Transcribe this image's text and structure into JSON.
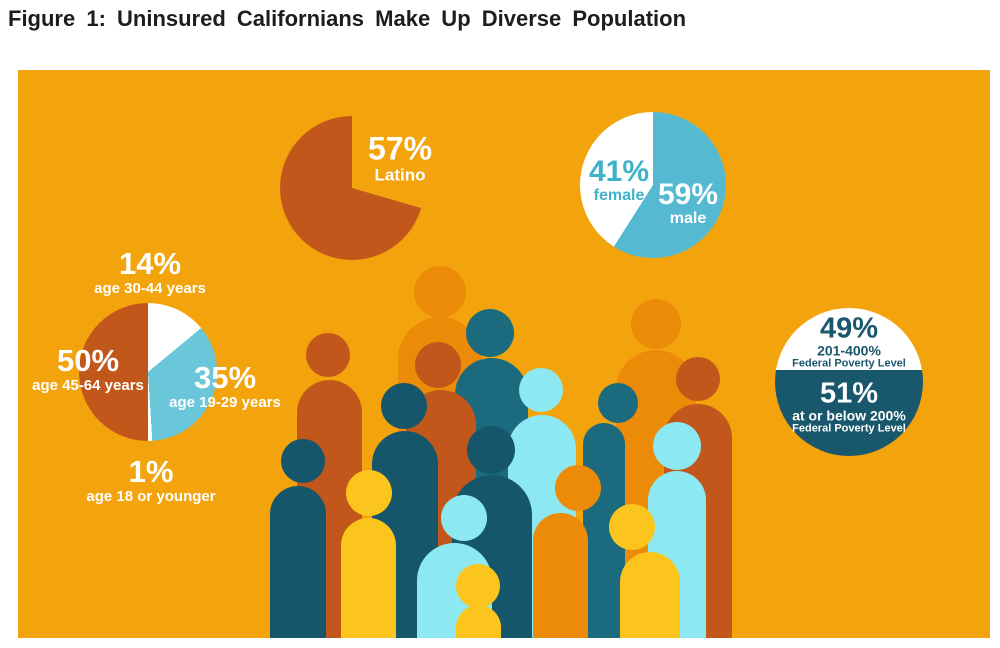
{
  "title": "Figure 1: Uninsured Californians Make Up Diverse Population",
  "colors": {
    "panel_background": "#f3a40c",
    "title_text": "#1d1d1d",
    "rust": "#c2571b",
    "orange": "#ec8b07",
    "dark_teal": "#16566b",
    "medium_teal": "#1c6a7e",
    "light_cyan": "#8ce9f1",
    "yellow": "#fcc51e",
    "gender_teal": "#55bad1",
    "age_teal": "#6ac6d9",
    "fpl_dark_teal": "#19576c",
    "label_white": "#ffffff"
  },
  "chart_data": [
    {
      "id": "latino",
      "type": "pie",
      "title": "Ethnicity",
      "slices": [
        {
          "label": "Latino",
          "value": 57
        }
      ],
      "paint": {
        "kind": "conic",
        "stops": [
          {
            "color": "rgba(0,0,0,0)",
            "to": 29.5
          },
          {
            "color": "#c2571b",
            "to": 100
          }
        ]
      },
      "layout_hint": "partial pie (open wedge facing upper-right), white labels inside the opening"
    },
    {
      "id": "gender",
      "type": "pie",
      "title": "Gender",
      "slices": [
        {
          "label": "male",
          "value": 59
        },
        {
          "label": "female",
          "value": 41
        }
      ],
      "paint": {
        "kind": "conic",
        "stops": [
          {
            "color": "#55bad1",
            "to": 59
          },
          {
            "color": "#ffffff",
            "to": 100
          }
        ]
      },
      "layout_hint": "teal male slice starts at 12 o'clock clockwise; white female slice upper-left"
    },
    {
      "id": "age",
      "type": "pie",
      "title": "Age",
      "slices": [
        {
          "label": "age 30-44 years",
          "value": 14
        },
        {
          "label": "age 19-29 years",
          "value": 35
        },
        {
          "label": "age 18 or younger",
          "value": 1
        },
        {
          "label": "age 45-64 years",
          "value": 50
        }
      ],
      "paint": {
        "kind": "conic",
        "stops": [
          {
            "color": "#ffffff",
            "to": 14
          },
          {
            "color": "#6ac6d9",
            "to": 49
          },
          {
            "color": "#ffffff",
            "to": 50
          },
          {
            "color": "#c2571b",
            "to": 100
          }
        ]
      },
      "layout_hint": "clockwise from 12 o'clock: white 14%, teal 35%, white sliver 1%, rust 50% (left half); labels outside in white"
    },
    {
      "id": "poverty",
      "type": "pie",
      "title": "Federal Poverty Level",
      "slices": [
        {
          "label": "201-400% Federal Poverty Level",
          "value": 49
        },
        {
          "label": "at or below 200% Federal Poverty Level",
          "value": 51
        }
      ],
      "paint": {
        "kind": "linear",
        "stops": [
          {
            "color": "#ffffff",
            "to": 42
          },
          {
            "color": "#19576c",
            "to": 100
          }
        ]
      },
      "layout_hint": "horizontal split circle: white top half, dark-teal bottom half, labels centered inside"
    }
  ],
  "stats": {
    "latino": {
      "value": "57%",
      "label": "Latino"
    },
    "female": {
      "value": "41%",
      "label": "female"
    },
    "male": {
      "value": "59%",
      "label": "male"
    },
    "age_30_44": {
      "value": "14%",
      "label": "age 30-44 years"
    },
    "age_45_64": {
      "value": "50%",
      "label": "age 45-64 years"
    },
    "age_19_29": {
      "value": "35%",
      "label": "age 19-29 years"
    },
    "age_18": {
      "value": "1%",
      "label": "age 18 or younger"
    },
    "fpl_upper": {
      "value": "49%",
      "range": "201-400%",
      "sub": "Federal Poverty Level"
    },
    "fpl_lower": {
      "value": "51%",
      "range": "at or below 200%",
      "sub": "Federal Poverty Level"
    }
  },
  "crowd": {
    "description": "stylized crowd of diverse person silhouettes",
    "people": [
      {
        "name": "orange-back-center",
        "color": "#ec8b07",
        "head": [
          422,
          222,
          26
        ],
        "body": [
          380,
          247,
          84
        ]
      },
      {
        "name": "medium-teal-back",
        "color": "#1c6a7e",
        "head": [
          472,
          263,
          24
        ],
        "body": [
          437,
          288,
          73
        ]
      },
      {
        "name": "orange-back-right",
        "color": "#ec8b07",
        "head": [
          638,
          254,
          25
        ],
        "body": [
          598,
          280,
          80
        ]
      },
      {
        "name": "rust-back-left",
        "color": "#c2571b",
        "head": [
          310,
          285,
          22
        ],
        "body": [
          279,
          310,
          65
        ]
      },
      {
        "name": "rust-mid-center",
        "color": "#c2571b",
        "head": [
          420,
          295,
          23
        ],
        "body": [
          388,
          320,
          70
        ]
      },
      {
        "name": "rust-back-right",
        "color": "#c2571b",
        "head": [
          680,
          309,
          22
        ],
        "body": [
          646,
          334,
          68
        ]
      },
      {
        "name": "cyan-tall-middle",
        "color": "#8ce9f1",
        "head": [
          523,
          320,
          22
        ],
        "body": [
          490,
          345,
          68
        ]
      },
      {
        "name": "dark-teal-mid-left",
        "color": "#16566b",
        "head": [
          386,
          336,
          23
        ],
        "body": [
          354,
          361,
          66
        ]
      },
      {
        "name": "medium-teal-mid-right",
        "color": "#1c6a7e",
        "head": [
          600,
          333,
          20
        ],
        "body": [
          565,
          353,
          42
        ]
      },
      {
        "name": "orange-small-middle",
        "color": "#ec8b07",
        "head": [
          560,
          418,
          23
        ],
        "body": [
          515,
          443,
          55
        ]
      },
      {
        "name": "dark-teal-center-big",
        "color": "#16566b",
        "head": [
          473,
          380,
          24
        ],
        "body": [
          434,
          405,
          80
        ]
      },
      {
        "name": "cyan-right",
        "color": "#8ce9f1",
        "head": [
          659,
          376,
          24
        ],
        "body": [
          630,
          401,
          58
        ]
      },
      {
        "name": "dark-teal-front-left",
        "color": "#16566b",
        "head": [
          285,
          391,
          22
        ],
        "body": [
          252,
          416,
          56
        ]
      },
      {
        "name": "yellow-front-left",
        "color": "#fcc51e",
        "head": [
          351,
          423,
          23
        ],
        "body": [
          323,
          448,
          55
        ]
      },
      {
        "name": "yellow-front-right",
        "color": "#fcc51e",
        "head": [
          614,
          457,
          23
        ],
        "body": [
          602,
          482,
          60
        ]
      },
      {
        "name": "cyan-small-front",
        "color": "#8ce9f1",
        "head": [
          446,
          448,
          23
        ],
        "body": [
          399,
          473,
          75
        ]
      },
      {
        "name": "yellow-child-front",
        "color": "#fcc51e",
        "head": [
          460,
          516,
          22
        ],
        "body": [
          438,
          535,
          45
        ]
      }
    ]
  }
}
